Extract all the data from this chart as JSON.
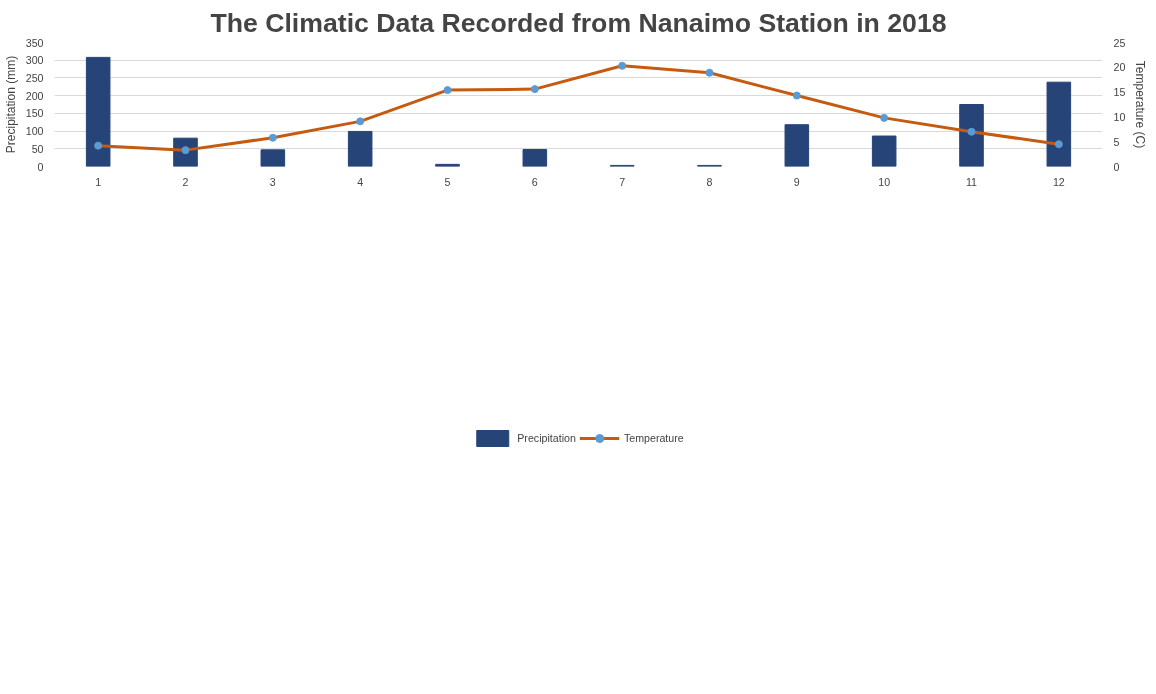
{
  "chart_data": {
    "type": "bar",
    "title": "The Climatic Data Recorded from Nanaimo Station in 2018",
    "ylabel": "Precipitation (mm)",
    "y2label": "Temperature (C)",
    "categories": [
      "1",
      "2",
      "3",
      "4",
      "5",
      "6",
      "7",
      "8",
      "9",
      "10",
      "11",
      "12"
    ],
    "series": [
      {
        "name": "Precipitation",
        "color": "#264478",
        "values": [
          308,
          80,
          47,
          99,
          6,
          48,
          3,
          3,
          118,
          86,
          175,
          238
        ]
      },
      {
        "name": "Temperature",
        "type": "line",
        "axis": "y2",
        "color": "#c55a11",
        "marker": "circle",
        "values": [
          4.2,
          3.3,
          5.8,
          9.1,
          15.4,
          15.6,
          20.3,
          18.9,
          14.3,
          9.8,
          7.0,
          4.5
        ]
      }
    ],
    "ylim": [
      0,
      350
    ],
    "yticks": [
      0,
      50,
      100,
      150,
      200,
      250,
      300,
      350
    ],
    "y2lim": [
      0,
      25
    ],
    "y2ticks": [
      0,
      5,
      10,
      15,
      20,
      25
    ],
    "grid": "y",
    "legend": "bottom"
  }
}
